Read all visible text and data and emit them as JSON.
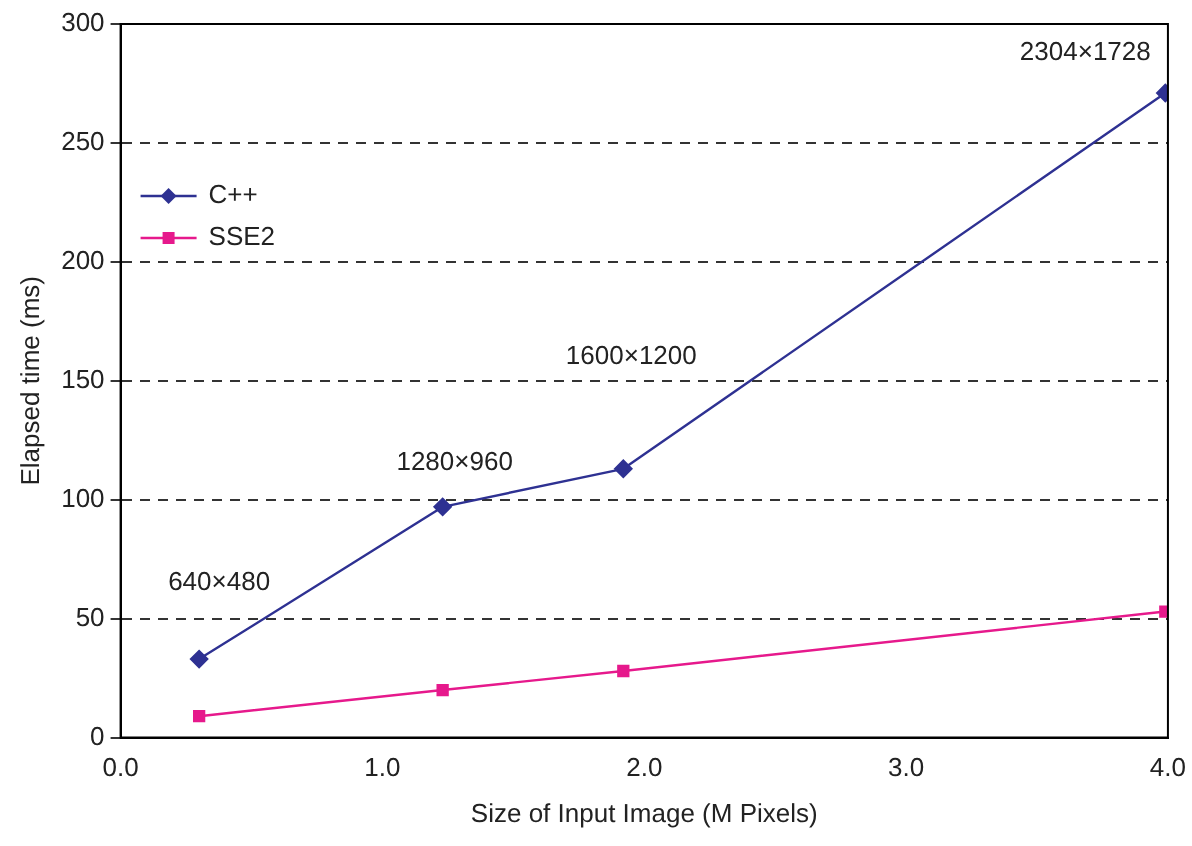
{
  "chart_data": {
    "type": "line",
    "xlabel": "Size of Input Image (M Pixels)",
    "ylabel": "Elapsed time (ms)",
    "x": [
      0.3,
      1.23,
      1.92,
      3.99
    ],
    "series": [
      {
        "name": "C++",
        "color": "#2e3192",
        "values": [
          33,
          97,
          113,
          271
        ],
        "marker": "diamond"
      },
      {
        "name": "SSE2",
        "color": "#e6198c",
        "values": [
          9,
          20,
          28,
          53
        ],
        "marker": "square"
      }
    ],
    "annotations": [
      "640×480",
      "1280×960",
      "1600×1200",
      "2304×1728"
    ],
    "xlim": [
      0,
      4
    ],
    "xticks": [
      {
        "value": 0,
        "label": "0.0"
      },
      {
        "value": 1,
        "label": "1.0"
      },
      {
        "value": 2,
        "label": "2.0"
      },
      {
        "value": 3,
        "label": "3.0"
      },
      {
        "value": 4,
        "label": "4.0"
      }
    ],
    "ylim": [
      0,
      300
    ],
    "yticks": [
      0,
      50,
      100,
      150,
      200,
      250,
      300
    ],
    "grid": "y",
    "legend": "top left",
    "line_style": "solid"
  }
}
